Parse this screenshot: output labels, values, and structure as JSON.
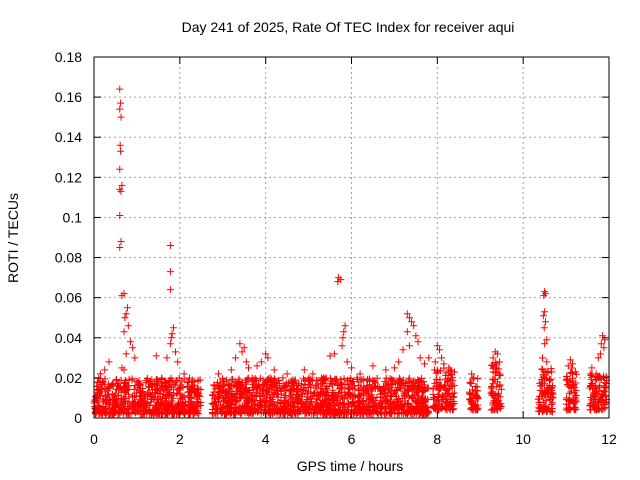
{
  "chart_data": {
    "type": "scatter",
    "title": "Day 241 of 2025, Rate Of TEC Index for receiver aqui",
    "xlabel": "GPS time / hours",
    "ylabel": "ROTI / TECUs",
    "xlim": [
      0,
      12
    ],
    "ylim": [
      0,
      0.18
    ],
    "xticks": [
      0,
      2,
      4,
      6,
      8,
      10,
      12
    ],
    "yticks": [
      0,
      0.02,
      0.04,
      0.06,
      0.08,
      0.1,
      0.12,
      0.14,
      0.16,
      0.18
    ],
    "grid": true,
    "marker": "+",
    "color": "#ff0000",
    "dense_bands": [
      {
        "x_start": 0.0,
        "x_end": 2.5,
        "y_low": 0.002,
        "y_high": 0.02
      },
      {
        "x_start": 2.75,
        "x_end": 7.8,
        "y_low": 0.002,
        "y_high": 0.02
      },
      {
        "x_start": 7.9,
        "x_end": 8.4,
        "y_low": 0.004,
        "y_high": 0.025
      },
      {
        "x_start": 8.75,
        "x_end": 8.95,
        "y_low": 0.004,
        "y_high": 0.02
      },
      {
        "x_start": 9.25,
        "x_end": 9.5,
        "y_low": 0.004,
        "y_high": 0.03
      },
      {
        "x_start": 10.35,
        "x_end": 10.7,
        "y_low": 0.003,
        "y_high": 0.025
      },
      {
        "x_start": 11.0,
        "x_end": 11.25,
        "y_low": 0.004,
        "y_high": 0.025
      },
      {
        "x_start": 11.55,
        "x_end": 11.95,
        "y_low": 0.004,
        "y_high": 0.022
      }
    ],
    "points": [
      [
        0.6,
        0.164
      ],
      [
        0.62,
        0.157
      ],
      [
        0.6,
        0.154
      ],
      [
        0.63,
        0.15
      ],
      [
        0.61,
        0.136
      ],
      [
        0.62,
        0.133
      ],
      [
        0.6,
        0.124
      ],
      [
        0.65,
        0.116
      ],
      [
        0.6,
        0.114
      ],
      [
        0.63,
        0.113
      ],
      [
        0.6,
        0.101
      ],
      [
        0.63,
        0.088
      ],
      [
        0.6,
        0.085
      ],
      [
        0.7,
        0.062
      ],
      [
        0.65,
        0.061
      ],
      [
        0.78,
        0.055
      ],
      [
        0.75,
        0.052
      ],
      [
        0.72,
        0.05
      ],
      [
        0.8,
        0.046
      ],
      [
        0.7,
        0.043
      ],
      [
        0.85,
        0.038
      ],
      [
        0.9,
        0.035
      ],
      [
        0.95,
        0.03
      ],
      [
        0.75,
        0.032
      ],
      [
        0.65,
        0.025
      ],
      [
        0.7,
        0.024
      ],
      [
        1.78,
        0.086
      ],
      [
        1.78,
        0.073
      ],
      [
        1.78,
        0.064
      ],
      [
        1.85,
        0.045
      ],
      [
        1.82,
        0.042
      ],
      [
        1.8,
        0.04
      ],
      [
        1.78,
        0.037
      ],
      [
        1.9,
        0.033
      ],
      [
        1.95,
        0.028
      ],
      [
        1.7,
        0.03
      ],
      [
        1.45,
        0.031
      ],
      [
        0.35,
        0.028
      ],
      [
        0.15,
        0.022
      ],
      [
        0.25,
        0.024
      ],
      [
        2.1,
        0.022
      ],
      [
        2.2,
        0.018
      ],
      [
        5.7,
        0.07
      ],
      [
        5.75,
        0.069
      ],
      [
        5.68,
        0.068
      ],
      [
        5.85,
        0.046
      ],
      [
        5.82,
        0.043
      ],
      [
        5.8,
        0.04
      ],
      [
        5.78,
        0.036
      ],
      [
        5.6,
        0.032
      ],
      [
        5.5,
        0.031
      ],
      [
        5.9,
        0.028
      ],
      [
        6.0,
        0.025
      ],
      [
        6.2,
        0.022
      ],
      [
        7.3,
        0.052
      ],
      [
        7.35,
        0.05
      ],
      [
        7.4,
        0.048
      ],
      [
        7.45,
        0.046
      ],
      [
        7.3,
        0.043
      ],
      [
        7.5,
        0.041
      ],
      [
        7.55,
        0.038
      ],
      [
        7.35,
        0.036
      ],
      [
        7.2,
        0.034
      ],
      [
        7.6,
        0.03
      ],
      [
        7.1,
        0.028
      ],
      [
        7.0,
        0.025
      ],
      [
        6.8,
        0.024
      ],
      [
        6.5,
        0.026
      ],
      [
        7.7,
        0.027
      ],
      [
        7.8,
        0.03
      ],
      [
        3.4,
        0.037
      ],
      [
        3.5,
        0.035
      ],
      [
        3.45,
        0.033
      ],
      [
        3.3,
        0.03
      ],
      [
        3.55,
        0.028
      ],
      [
        3.6,
        0.025
      ],
      [
        3.2,
        0.024
      ],
      [
        2.9,
        0.022
      ],
      [
        3.0,
        0.019
      ],
      [
        4.0,
        0.032
      ],
      [
        4.05,
        0.03
      ],
      [
        3.9,
        0.028
      ],
      [
        3.8,
        0.026
      ],
      [
        4.2,
        0.024
      ],
      [
        4.5,
        0.022
      ],
      [
        4.4,
        0.02
      ],
      [
        4.9,
        0.024
      ],
      [
        5.1,
        0.022
      ],
      [
        5.3,
        0.02
      ],
      [
        2.8,
        0.016
      ],
      [
        8.0,
        0.036
      ],
      [
        8.05,
        0.034
      ],
      [
        8.1,
        0.03
      ],
      [
        7.95,
        0.028
      ],
      [
        8.15,
        0.027
      ],
      [
        8.3,
        0.024
      ],
      [
        8.8,
        0.022
      ],
      [
        8.85,
        0.02
      ],
      [
        9.35,
        0.033
      ],
      [
        9.4,
        0.032
      ],
      [
        9.3,
        0.03
      ],
      [
        9.45,
        0.028
      ],
      [
        10.5,
        0.063
      ],
      [
        10.52,
        0.062
      ],
      [
        10.48,
        0.061
      ],
      [
        10.5,
        0.053
      ],
      [
        10.47,
        0.051
      ],
      [
        10.52,
        0.048
      ],
      [
        10.49,
        0.045
      ],
      [
        10.55,
        0.039
      ],
      [
        10.5,
        0.037
      ],
      [
        10.45,
        0.03
      ],
      [
        10.55,
        0.028
      ],
      [
        11.1,
        0.029
      ],
      [
        11.15,
        0.027
      ],
      [
        11.05,
        0.026
      ],
      [
        11.6,
        0.025
      ],
      [
        11.7,
        0.022
      ],
      [
        11.85,
        0.041
      ],
      [
        11.9,
        0.039
      ],
      [
        11.82,
        0.037
      ],
      [
        11.88,
        0.035
      ],
      [
        11.8,
        0.032
      ],
      [
        11.75,
        0.03
      ]
    ]
  }
}
